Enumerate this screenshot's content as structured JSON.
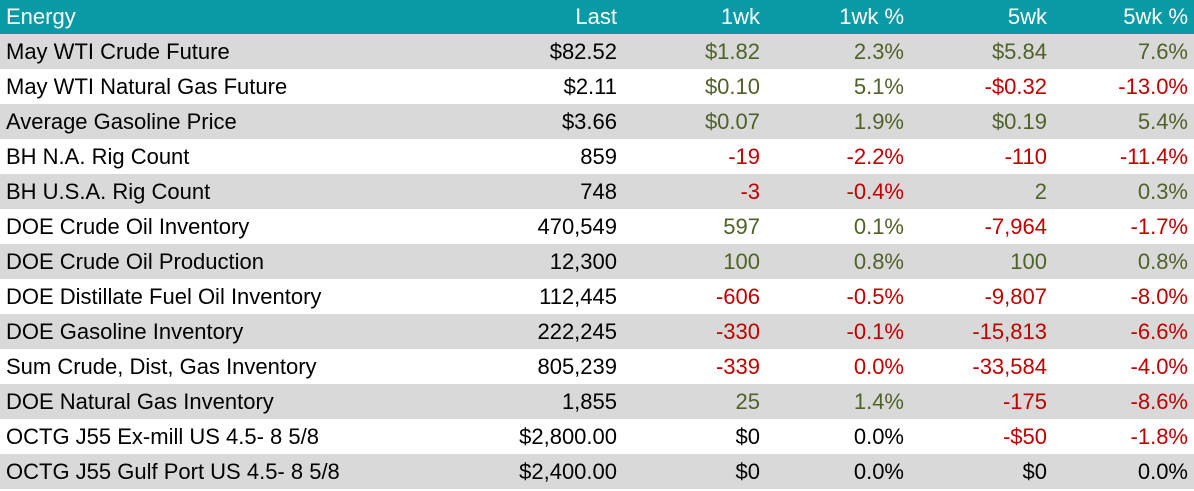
{
  "colors": {
    "header_bg": "#0a9aa6",
    "header_text": "#ffffff",
    "row_shade": "#d9d9d9",
    "positive": "#4f6228",
    "negative": "#c00000",
    "neutral": "#000000"
  },
  "headers": [
    "Energy",
    "Last",
    "1wk",
    "1wk %",
    "5wk",
    "5wk %"
  ],
  "rows": [
    {
      "name": "May WTI Crude Future",
      "last": "$82.52",
      "wk1": "$1.82",
      "wk1_pct": "2.3%",
      "wk5": "$5.84",
      "wk5_pct": "7.6%",
      "c": [
        "pos",
        "pos",
        "pos",
        "pos"
      ]
    },
    {
      "name": "May WTI Natural Gas Future",
      "last": "$2.11",
      "wk1": "$0.10",
      "wk1_pct": "5.1%",
      "wk5": "-$0.32",
      "wk5_pct": "-13.0%",
      "c": [
        "pos",
        "pos",
        "neg",
        "neg"
      ]
    },
    {
      "name": "Average Gasoline Price",
      "last": "$3.66",
      "wk1": "$0.07",
      "wk1_pct": "1.9%",
      "wk5": "$0.19",
      "wk5_pct": "5.4%",
      "c": [
        "pos",
        "pos",
        "pos",
        "pos"
      ]
    },
    {
      "name": "BH N.A. Rig Count",
      "last": "859",
      "wk1": "-19",
      "wk1_pct": "-2.2%",
      "wk5": "-110",
      "wk5_pct": "-11.4%",
      "c": [
        "neg",
        "neg",
        "neg",
        "neg"
      ]
    },
    {
      "name": "BH U.S.A. Rig Count",
      "last": "748",
      "wk1": "-3",
      "wk1_pct": "-0.4%",
      "wk5": "2",
      "wk5_pct": "0.3%",
      "c": [
        "neg",
        "neg",
        "pos",
        "pos"
      ]
    },
    {
      "name": "DOE Crude Oil Inventory",
      "last": "470,549",
      "wk1": "597",
      "wk1_pct": "0.1%",
      "wk5": "-7,964",
      "wk5_pct": "-1.7%",
      "c": [
        "pos",
        "pos",
        "neg",
        "neg"
      ]
    },
    {
      "name": "DOE Crude Oil Production",
      "last": "12,300",
      "wk1": "100",
      "wk1_pct": "0.8%",
      "wk5": "100",
      "wk5_pct": "0.8%",
      "c": [
        "pos",
        "pos",
        "pos",
        "pos"
      ]
    },
    {
      "name": "DOE Distillate Fuel Oil Inventory",
      "last": "112,445",
      "wk1": "-606",
      "wk1_pct": "-0.5%",
      "wk5": "-9,807",
      "wk5_pct": "-8.0%",
      "c": [
        "neg",
        "neg",
        "neg",
        "neg"
      ]
    },
    {
      "name": "DOE Gasoline Inventory",
      "last": "222,245",
      "wk1": "-330",
      "wk1_pct": "-0.1%",
      "wk5": "-15,813",
      "wk5_pct": "-6.6%",
      "c": [
        "neg",
        "neg",
        "neg",
        "neg"
      ]
    },
    {
      "name": "Sum Crude, Dist, Gas Inventory",
      "last": "805,239",
      "wk1": "-339",
      "wk1_pct": "0.0%",
      "wk5": "-33,584",
      "wk5_pct": "-4.0%",
      "c": [
        "neg",
        "neg",
        "neg",
        "neg"
      ]
    },
    {
      "name": "DOE Natural Gas Inventory",
      "last": "1,855",
      "wk1": "25",
      "wk1_pct": "1.4%",
      "wk5": "-175",
      "wk5_pct": "-8.6%",
      "c": [
        "pos",
        "pos",
        "neg",
        "neg"
      ]
    },
    {
      "name": "OCTG J55 Ex-mill US 4.5- 8 5/8",
      "last": "$2,800.00",
      "wk1": "$0",
      "wk1_pct": "0.0%",
      "wk5": "-$50",
      "wk5_pct": "-1.8%",
      "c": [
        "neu",
        "neu",
        "neg",
        "neg"
      ]
    },
    {
      "name": "OCTG J55 Gulf Port US 4.5- 8 5/8",
      "last": "$2,400.00",
      "wk1": "$0",
      "wk1_pct": "0.0%",
      "wk5": "$0",
      "wk5_pct": "0.0%",
      "c": [
        "neu",
        "neu",
        "neu",
        "neu"
      ]
    }
  ]
}
